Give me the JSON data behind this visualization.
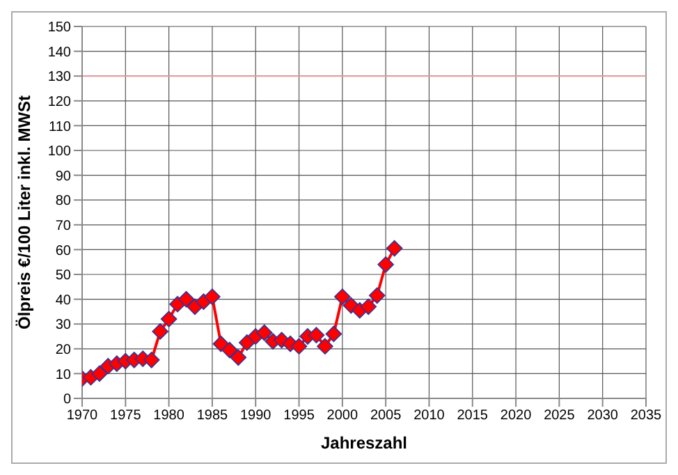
{
  "chart_data": {
    "type": "line",
    "xlabel": "Jahreszahl",
    "ylabel": "Ölpreis €/100 Liter inkl. MWSt",
    "x": [
      1970,
      1971,
      1972,
      1973,
      1974,
      1975,
      1976,
      1977,
      1978,
      1979,
      1980,
      1981,
      1982,
      1983,
      1984,
      1985,
      1986,
      1987,
      1988,
      1989,
      1990,
      1991,
      1992,
      1993,
      1994,
      1995,
      1996,
      1997,
      1998,
      1999,
      2000,
      2001,
      2002,
      2003,
      2004,
      2005,
      2006
    ],
    "series": [
      {
        "color": "#ff0000",
        "values": [
          8,
          8.5,
          10,
          13,
          14,
          15,
          15.5,
          16,
          15.5,
          27,
          32,
          38,
          40,
          37,
          39,
          41,
          22,
          19.5,
          16.5,
          22.5,
          25,
          26.5,
          23,
          23.5,
          22,
          21,
          25,
          25.5,
          21,
          26,
          41,
          37.5,
          35.5,
          37,
          41.5,
          54,
          60.5
        ]
      }
    ],
    "xlim": [
      1970,
      2035
    ],
    "xticks": [
      1970,
      1975,
      1980,
      1985,
      1990,
      1995,
      2000,
      2005,
      2010,
      2015,
      2020,
      2025,
      2030,
      2035
    ],
    "ylim": [
      0,
      150
    ],
    "yticks": [
      0,
      10,
      20,
      30,
      40,
      50,
      60,
      70,
      80,
      90,
      100,
      110,
      120,
      130,
      140,
      150
    ],
    "ref_lines": [
      {
        "axis": "y",
        "value": 130,
        "color": "#e8a0a0"
      }
    ],
    "grid": true,
    "marker": "diamond",
    "line_style": "solid"
  }
}
